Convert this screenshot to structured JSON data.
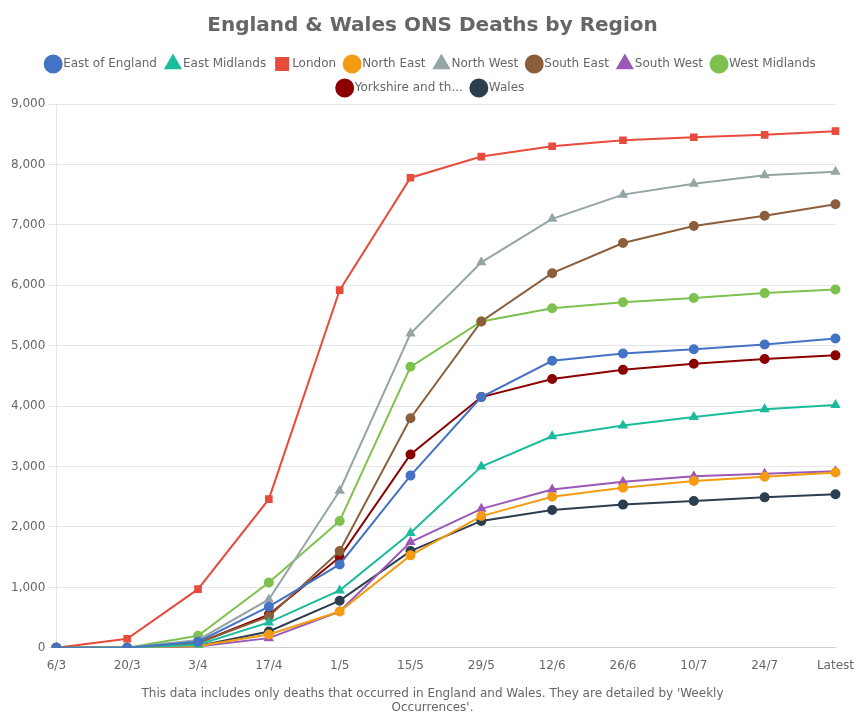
{
  "chart_data": {
    "type": "line",
    "title": "England & Wales ONS Deaths by Region",
    "subtitle": "This data includes only deaths that occurred in England and Wales. They are detailed by 'Weekly\nOccurrences'.",
    "categories": [
      "6/3",
      "20/3",
      "3/4",
      "17/4",
      "1/5",
      "15/5",
      "29/5",
      "12/6",
      "26/6",
      "10/7",
      "24/7",
      "Latest"
    ],
    "series": [
      {
        "name": "East of England",
        "color": "#4472c4",
        "marker": "circle",
        "values": [
          0,
          0,
          100,
          680,
          1380,
          2850,
          4150,
          4750,
          4870,
          4940,
          5020,
          5120
        ]
      },
      {
        "name": "East Midlands",
        "color": "#1abc9c",
        "marker": "triangle",
        "values": [
          0,
          0,
          50,
          420,
          950,
          1900,
          3000,
          3500,
          3680,
          3820,
          3950,
          4020
        ]
      },
      {
        "name": "London",
        "color": "#e74c3c",
        "marker": "square",
        "values": [
          0,
          150,
          970,
          2460,
          5920,
          7780,
          8130,
          8300,
          8400,
          8450,
          8490,
          8550
        ]
      },
      {
        "name": "North East",
        "color": "#f39c12",
        "marker": "circle",
        "values": [
          0,
          0,
          30,
          220,
          600,
          1530,
          2180,
          2500,
          2650,
          2760,
          2830,
          2900
        ]
      },
      {
        "name": "North West",
        "color": "#95a5a6",
        "marker": "triangle",
        "values": [
          0,
          0,
          130,
          800,
          2600,
          5200,
          6380,
          7100,
          7500,
          7680,
          7820,
          7880
        ]
      },
      {
        "name": "South East",
        "color": "#8B5E3C",
        "marker": "circle",
        "values": [
          0,
          0,
          80,
          520,
          1600,
          3800,
          5400,
          6200,
          6700,
          6980,
          7150,
          7340
        ]
      },
      {
        "name": "South West",
        "color": "#9b59b6",
        "marker": "triangle",
        "values": [
          0,
          0,
          20,
          160,
          600,
          1750,
          2300,
          2620,
          2750,
          2840,
          2880,
          2920
        ]
      },
      {
        "name": "West Midlands",
        "color": "#7dc14e",
        "marker": "circle",
        "values": [
          0,
          0,
          200,
          1080,
          2100,
          4650,
          5400,
          5620,
          5720,
          5790,
          5870,
          5930
        ]
      },
      {
        "name": "Yorkshire and th...",
        "color": "#8B0000",
        "marker": "circle",
        "values": [
          0,
          0,
          80,
          550,
          1500,
          3200,
          4150,
          4450,
          4600,
          4700,
          4780,
          4840
        ]
      },
      {
        "name": "Wales",
        "color": "#2c3e50",
        "marker": "circle",
        "values": [
          0,
          0,
          30,
          270,
          780,
          1600,
          2100,
          2280,
          2370,
          2430,
          2490,
          2540
        ]
      }
    ],
    "ylim": [
      0,
      9000
    ],
    "yticks": [
      0,
      {
        "value": 1000,
        "label": "1,000"
      },
      {
        "value": 2000,
        "label": "2,000"
      },
      {
        "value": 3000,
        "label": "3,000"
      },
      {
        "value": 4000,
        "label": "4,000"
      },
      {
        "value": 5000,
        "label": "5,000"
      },
      {
        "value": 6000,
        "label": "6,000"
      },
      {
        "value": 7000,
        "label": "7,000"
      },
      {
        "value": 8000,
        "label": "8,000"
      },
      {
        "value": 9000,
        "label": "9,000"
      }
    ],
    "grid": true,
    "legend": "top"
  }
}
